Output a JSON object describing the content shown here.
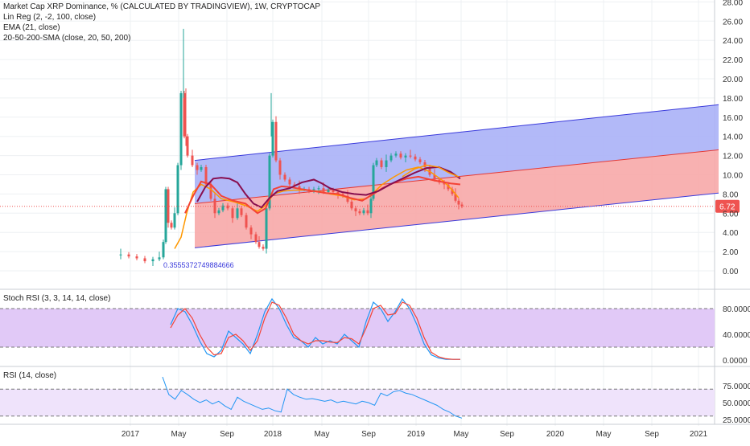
{
  "legend": {
    "title": "Market Cap XRP Dominance, % (CALCULATED BY TRADINGVIEW), 1W, CRYPTOCAP",
    "linreg": "Lin Reg (2, -2, 100, close)",
    "ema": "EMA (21, close)",
    "sma": "20-50-200-SMA (close, 20, 50, 200)"
  },
  "stoch_title": "Stoch RSI (3, 3, 14, 14, close)",
  "rsi_title": "RSI (14, close)",
  "price_badge": "6.72",
  "min_label": "0.3555372749884666",
  "colors": {
    "up": "#26a69a",
    "down": "#ef5350",
    "band_upper": "#aab1f7",
    "band_lower": "#f7a8a8",
    "ema": "#f44336",
    "sma": "#880e4f",
    "stoch_k": "#2196f3",
    "stoch_d": "#f44336",
    "rsi": "#2196f3",
    "stoch_band": "#e1c9f7",
    "rsi_band": "#efe3fb"
  },
  "chart_data": [
    {
      "type": "candlestick",
      "y_ticks": [
        "28.00",
        "26.00",
        "24.00",
        "22.00",
        "20.00",
        "18.00",
        "16.00",
        "14.00",
        "12.00",
        "10.00",
        "8.00",
        "6.00",
        "4.00",
        "2.00",
        "0.00"
      ],
      "x_ticks": [
        "2017",
        "May",
        "Sep",
        "2018",
        "May",
        "Sep",
        "2019",
        "May",
        "Sep",
        "2020",
        "May",
        "Sep",
        "2021"
      ],
      "ylim": [
        -2.3,
        28.3
      ],
      "last_value": 6.72,
      "series": [
        {
          "name": "close (weekly, sampled)",
          "x": [
            0,
            2,
            4,
            6,
            8,
            10,
            12,
            14,
            16,
            18,
            20,
            22,
            24,
            26,
            28,
            30,
            32,
            34,
            36,
            38,
            40,
            42,
            44,
            46,
            48,
            50,
            52,
            54,
            56,
            58,
            60,
            62,
            64,
            66,
            68,
            70,
            72,
            74,
            76,
            78,
            80,
            82,
            84,
            86,
            88,
            90,
            92,
            94,
            96,
            98,
            100,
            102,
            104,
            106,
            108,
            110,
            112,
            114,
            116,
            118
          ],
          "values": [
            1.7,
            1.6,
            1.4,
            1.2,
            1.0,
            1.1,
            1.3,
            1.9,
            8.5,
            6.0,
            4.5,
            11.0,
            18.5,
            12.0,
            11.0,
            9.0,
            7.5,
            6.0,
            6.5,
            6.8,
            5.5,
            4.5,
            3.0,
            2.5,
            15.5,
            11.0,
            9.5,
            9.0,
            8.5,
            8.5,
            8.0,
            8.5,
            8.5,
            8.0,
            7.5,
            6.5,
            6.0,
            11.5,
            11.0,
            12.0,
            12.3,
            12.0,
            11.5,
            11.0,
            9.5,
            8.0,
            6.72,
            6.72,
            6.72,
            6.72,
            6.72,
            6.72,
            6.72,
            6.72,
            6.72,
            6.72,
            6.72,
            6.72,
            6.72,
            6.72
          ]
        }
      ]
    },
    {
      "type": "line",
      "name": "Stoch RSI",
      "y_ticks": [
        "80.0000",
        "40.0000",
        "0.0000"
      ],
      "series": [
        {
          "name": "K",
          "values": [
            55,
            80,
            75,
            55,
            30,
            10,
            5,
            15,
            45,
            35,
            25,
            10,
            40,
            75,
            95,
            80,
            55,
            35,
            30,
            20,
            35,
            25,
            30,
            25,
            40,
            30,
            20,
            60,
            90,
            80,
            60,
            75,
            95,
            80,
            55,
            25,
            8,
            3,
            1,
            1,
            1
          ]
        },
        {
          "name": "D",
          "values": [
            50,
            70,
            80,
            65,
            40,
            20,
            8,
            10,
            35,
            40,
            30,
            15,
            30,
            65,
            90,
            85,
            65,
            40,
            30,
            25,
            30,
            30,
            28,
            27,
            35,
            33,
            25,
            50,
            80,
            85,
            70,
            72,
            90,
            85,
            65,
            35,
            12,
            5,
            2,
            1,
            1
          ]
        }
      ]
    },
    {
      "type": "line",
      "name": "RSI",
      "y_ticks": [
        "75.0000",
        "50.0000",
        "25.0000"
      ],
      "series": [
        {
          "name": "RSI",
          "values": [
            88,
            62,
            55,
            68,
            62,
            55,
            50,
            54,
            48,
            52,
            45,
            40,
            58,
            52,
            48,
            44,
            40,
            42,
            38,
            36,
            70,
            62,
            58,
            55,
            56,
            54,
            52,
            54,
            50,
            52,
            50,
            48,
            52,
            50,
            46,
            64,
            60,
            66,
            68,
            64,
            62,
            58,
            54,
            50,
            46,
            40,
            36,
            30,
            27
          ]
        }
      ]
    }
  ]
}
